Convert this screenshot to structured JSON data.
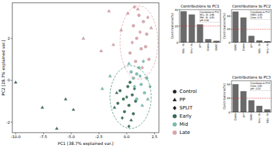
{
  "chart_data": [
    {
      "type": "scatter",
      "x_label": "PC1 [38.7% explained var.]",
      "y_label": "PC2 [28.7% explained var.]",
      "xlim": [
        -10.3,
        2.9
      ],
      "ylim": [
        -2.5,
        3.7
      ],
      "xticks": [
        {
          "value": -10,
          "label": "-10.0"
        },
        {
          "value": -7.5,
          "label": "-7.5"
        },
        {
          "value": -5,
          "label": "-5.0"
        },
        {
          "value": -2.5,
          "label": "-2.5"
        },
        {
          "value": 0,
          "label": "0.0"
        },
        {
          "value": 2.5,
          "label": "2.5"
        }
      ],
      "yticks": [
        -2,
        0,
        2
      ],
      "marker_legend": [
        {
          "name": "Control",
          "marker": "circle"
        },
        {
          "name": "PP",
          "marker": "triangle"
        },
        {
          "name": "SPLIT",
          "marker": "diamond"
        }
      ],
      "series": [
        {
          "name": "Early",
          "color": "#2e6a4e",
          "x": [
            -0.3,
            0.2,
            -0.6,
            0.5,
            0.1,
            -0.2,
            0.8,
            0.3,
            -0.8,
            0.6,
            -10.0,
            -7.6,
            -5.5,
            -4.8,
            -6.3,
            -0.9,
            0.4,
            -1.1,
            0.0,
            0.7,
            -0.4,
            0.2
          ],
          "values": [
            -0.9,
            -1.2,
            -0.5,
            -0.7,
            -0.3,
            -1.5,
            -1.0,
            -0.1,
            -1.1,
            -1.6,
            -0.1,
            -1.3,
            -0.9,
            -1.4,
            -2.3,
            -0.6,
            -1.9,
            -1.3,
            -0.8,
            -0.4,
            -1.8,
            -2.2
          ],
          "markers": [
            "circle",
            "circle",
            "circle",
            "circle",
            "circle",
            "circle",
            "circle",
            "circle",
            "circle",
            "circle",
            "triangle",
            "triangle",
            "triangle",
            "triangle",
            "triangle",
            "triangle",
            "triangle",
            "triangle",
            "diamond",
            "diamond",
            "diamond",
            "diamond"
          ]
        },
        {
          "name": "Mid",
          "color": "#6fc2b1",
          "x": [
            0.9,
            1.3,
            0.6,
            1.6,
            1.1,
            0.4,
            1.8,
            0.9,
            -2.2,
            1.4,
            0.2,
            -1.5,
            1.9,
            1.2,
            0.7,
            1.5,
            2.1
          ],
          "values": [
            0.3,
            -0.2,
            0.1,
            -0.6,
            0.6,
            0.4,
            0.1,
            -0.9,
            -0.4,
            -1.2,
            0.8,
            0.2,
            -0.9,
            0.2,
            -0.3,
            0.9,
            -0.3
          ],
          "markers": [
            "circle",
            "circle",
            "circle",
            "circle",
            "circle",
            "circle",
            "circle",
            "circle",
            "triangle",
            "triangle",
            "triangle",
            "triangle",
            "triangle",
            "diamond",
            "diamond",
            "diamond",
            "diamond"
          ]
        },
        {
          "name": "Late",
          "color": "#e6a1a8",
          "x": [
            0.9,
            1.3,
            0.6,
            1.8,
            1.1,
            0.3,
            2.0,
            1.5,
            0.8,
            1.7,
            -3.9,
            -2.3,
            -1.6,
            -0.5,
            0.1,
            1.0,
            -1.2,
            2.2,
            1.2,
            0.5,
            1.9,
            1.4,
            0.7
          ],
          "values": [
            2.0,
            1.5,
            2.6,
            2.2,
            3.1,
            1.3,
            1.0,
            2.8,
            0.9,
            1.6,
            2.0,
            1.4,
            3.3,
            2.4,
            3.2,
            3.4,
            1.7,
            2.5,
            2.3,
            1.8,
            3.0,
            0.6,
            3.5
          ],
          "markers": [
            "circle",
            "circle",
            "circle",
            "circle",
            "circle",
            "circle",
            "circle",
            "circle",
            "circle",
            "circle",
            "triangle",
            "triangle",
            "triangle",
            "triangle",
            "triangle",
            "triangle",
            "triangle",
            "triangle",
            "diamond",
            "diamond",
            "diamond",
            "diamond",
            "diamond"
          ]
        }
      ],
      "ellipses": [
        {
          "cx": 0.35,
          "cy": -0.8,
          "rx": 1.85,
          "ry": 1.5,
          "color": "#3f8a66"
        },
        {
          "cx": 1.1,
          "cy": 1.8,
          "rx": 1.7,
          "ry": 1.75,
          "color": "#e39aa2"
        }
      ]
    },
    {
      "type": "bar",
      "title": "Contributions to PC1",
      "y_label": "Contributions(%)",
      "categories": [
        "NO₃⁻-N",
        "NH₄⁺-N",
        "pH",
        "Cmin",
        "GWC"
      ],
      "values": [
        38,
        34,
        22,
        4,
        2
      ],
      "color": "#6a6a6a",
      "ylim": [
        0,
        40
      ],
      "yticks": [
        0,
        20,
        40
      ],
      "reference_line": 20,
      "annotation": {
        "title": "Correlation to PC1",
        "lines": [
          "NO₃⁻-N: -0.86",
          "NH₄⁺-N: -0.80",
          "pH: 0.60"
        ]
      }
    },
    {
      "type": "bar",
      "title": "Contributions to PC2",
      "y_label": "Contributions(%)",
      "categories": [
        "GWC",
        "Cmin",
        "pH",
        "NO₃⁻-N",
        "NH₄⁺-N"
      ],
      "values": [
        47,
        38,
        10,
        3,
        2
      ],
      "color": "#6a6a6a",
      "ylim": [
        0,
        50
      ],
      "yticks": [
        0,
        20,
        40
      ],
      "reference_line": 20,
      "annotation": {
        "title": "Correlation to PC2",
        "lines": [
          "GWC: 0.83",
          "Cmin: 0.74"
        ]
      }
    },
    {
      "type": "bar",
      "title": "Contributions to PC3",
      "y_label": "Contributions(%)",
      "categories": [
        "Cmin",
        "pH",
        "GWC",
        "NH₄⁺-N",
        "NO₃⁻-N"
      ],
      "values": [
        40,
        30,
        17,
        9,
        4
      ],
      "color": "#6a6a6a",
      "ylim": [
        0,
        45
      ],
      "yticks": [
        0,
        20,
        40
      ],
      "reference_line": 20,
      "annotation": {
        "title": "Correlation to PC3",
        "lines": [
          "Cmin: 0.60",
          "pH: -0.53"
        ]
      }
    }
  ]
}
